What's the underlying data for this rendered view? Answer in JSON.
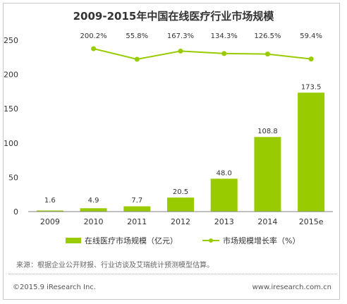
{
  "title": "2009-2015年中国在线医疗行业市场规模",
  "colors": {
    "bar": "#99cc00",
    "line": "#99cc00",
    "axis": "#808080"
  },
  "chart_data": {
    "type": "bar",
    "categories": [
      "2009",
      "2010",
      "2011",
      "2012",
      "2013",
      "2014",
      "2015e"
    ],
    "series": [
      {
        "name": "在线医疗市场规模（亿元）",
        "type": "bar",
        "values": [
          1.6,
          4.9,
          7.7,
          20.5,
          48.0,
          108.8,
          173.5
        ],
        "labels": [
          "1.6",
          "4.9",
          "7.7",
          "20.5",
          "48.0",
          "108.8",
          "173.5"
        ]
      },
      {
        "name": "市场规模增长率（%）",
        "type": "line",
        "values": [
          null,
          200.2,
          55.8,
          167.3,
          134.3,
          126.5,
          59.4
        ],
        "labels": [
          "",
          "200.2%",
          "55.8%",
          "167.3%",
          "134.3%",
          "126.5%",
          "59.4%"
        ]
      }
    ],
    "yticks": [
      "0",
      "50",
      "100",
      "150",
      "200",
      "250"
    ],
    "ylim": [
      0,
      250
    ],
    "grid": false,
    "legend": "bottom"
  },
  "source": "来源：根据企业公开财报、行业访谈及艾瑞统计预测模型估算。",
  "copyright": "©2015.9 iResearch Inc.",
  "website": "www.iresearch.com.cn"
}
